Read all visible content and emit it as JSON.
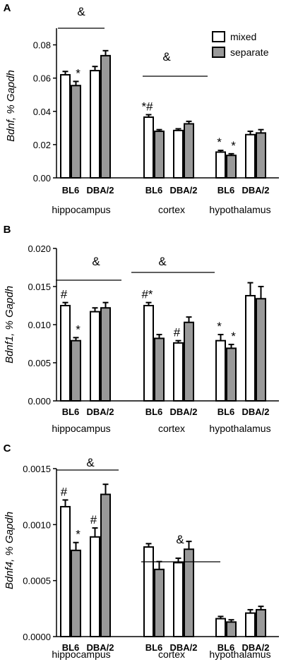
{
  "legend": {
    "series": [
      "mixed",
      "separate"
    ],
    "position": "top-right of panel A"
  },
  "colors": {
    "mixed": "#ffffff",
    "separate": "#999999",
    "stroke": "#000000"
  },
  "chart_data": [
    {
      "panel": "A",
      "type": "bar",
      "ylabel_gene": "Bdnf",
      "ylabel_rest": ", % Gapdh",
      "ylim": [
        0,
        0.09
      ],
      "yticks": [
        "0.00",
        "0.02",
        "0.04",
        "0.06",
        "0.08"
      ],
      "ytick_values": [
        0,
        0.02,
        0.04,
        0.06,
        0.08
      ],
      "regions": [
        "hippocampus",
        "cortex",
        "hypothalamus"
      ],
      "strains": [
        "BL6",
        "DBA/2"
      ],
      "groups": [
        {
          "region": "hippocampus",
          "strain": "BL6",
          "mixed": 0.062,
          "mixed_err": 0.002,
          "separate": 0.0555,
          "separate_err": 0.0025,
          "mixed_mark": "",
          "separate_mark": "*"
        },
        {
          "region": "hippocampus",
          "strain": "DBA/2",
          "mixed": 0.0645,
          "mixed_err": 0.0025,
          "separate": 0.0735,
          "separate_err": 0.003,
          "mixed_mark": "",
          "separate_mark": ""
        },
        {
          "region": "cortex",
          "strain": "BL6",
          "mixed": 0.0365,
          "mixed_err": 0.0015,
          "separate": 0.028,
          "separate_err": 0.001,
          "mixed_mark": "*#",
          "separate_mark": ""
        },
        {
          "region": "cortex",
          "strain": "DBA/2",
          "mixed": 0.0285,
          "mixed_err": 0.001,
          "separate": 0.0325,
          "separate_err": 0.0015,
          "mixed_mark": "",
          "separate_mark": ""
        },
        {
          "region": "hypothalamus",
          "strain": "BL6",
          "mixed": 0.0155,
          "mixed_err": 0.001,
          "separate": 0.0135,
          "separate_err": 0.001,
          "mixed_mark": "*",
          "separate_mark": "*"
        },
        {
          "region": "hypothalamus",
          "strain": "DBA/2",
          "mixed": 0.026,
          "mixed_err": 0.002,
          "separate": 0.027,
          "separate_err": 0.002,
          "mixed_mark": "",
          "separate_mark": ""
        }
      ],
      "brackets": [
        {
          "label": "&",
          "region": "hippocampus"
        },
        {
          "label": "&",
          "region": "cortex"
        }
      ]
    },
    {
      "panel": "B",
      "type": "bar",
      "ylabel_gene": "Bdnf1",
      "ylabel_rest": ", % Gapdh",
      "ylim": [
        0,
        0.02
      ],
      "yticks": [
        "0.000",
        "0.005",
        "0.010",
        "0.015",
        "0.020"
      ],
      "ytick_values": [
        0,
        0.005,
        0.01,
        0.015,
        0.02
      ],
      "regions": [
        "hippocampus",
        "cortex",
        "hypothalamus"
      ],
      "strains": [
        "BL6",
        "DBA/2"
      ],
      "groups": [
        {
          "region": "hippocampus",
          "strain": "BL6",
          "mixed": 0.0125,
          "mixed_err": 0.0004,
          "separate": 0.0079,
          "separate_err": 0.0004,
          "mixed_mark": "#",
          "separate_mark": "*"
        },
        {
          "region": "hippocampus",
          "strain": "DBA/2",
          "mixed": 0.0117,
          "mixed_err": 0.0005,
          "separate": 0.0122,
          "separate_err": 0.0007,
          "mixed_mark": "",
          "separate_mark": ""
        },
        {
          "region": "cortex",
          "strain": "BL6",
          "mixed": 0.0125,
          "mixed_err": 0.0004,
          "separate": 0.0082,
          "separate_err": 0.0005,
          "mixed_mark": "#*",
          "separate_mark": ""
        },
        {
          "region": "cortex",
          "strain": "DBA/2",
          "mixed": 0.0076,
          "mixed_err": 0.0003,
          "separate": 0.0103,
          "separate_err": 0.0007,
          "mixed_mark": "#",
          "separate_mark": ""
        },
        {
          "region": "hypothalamus",
          "strain": "BL6",
          "mixed": 0.0079,
          "mixed_err": 0.0008,
          "separate": 0.0069,
          "separate_err": 0.0005,
          "mixed_mark": "*",
          "separate_mark": "*"
        },
        {
          "region": "hypothalamus",
          "strain": "DBA/2",
          "mixed": 0.0138,
          "mixed_err": 0.0017,
          "separate": 0.0134,
          "separate_err": 0.0016,
          "mixed_mark": "",
          "separate_mark": ""
        }
      ],
      "brackets": [
        {
          "label": "&",
          "region": "hippocampus"
        },
        {
          "label": "&",
          "region": "cortex"
        }
      ]
    },
    {
      "panel": "C",
      "type": "bar",
      "ylabel_gene": "Bdnf4",
      "ylabel_rest": ", % Gapdh",
      "ylim": [
        0,
        0.0015
      ],
      "yticks": [
        "0.0000",
        "0.0005",
        "0.0010",
        "0.0015"
      ],
      "ytick_values": [
        0,
        0.0005,
        0.001,
        0.0015
      ],
      "regions": [
        "hippocampus",
        "cortex",
        "hypothalamus"
      ],
      "strains": [
        "BL6",
        "DBA/2"
      ],
      "groups": [
        {
          "region": "hippocampus",
          "strain": "BL6",
          "mixed": 0.00116,
          "mixed_err": 6e-05,
          "separate": 0.00077,
          "separate_err": 7e-05,
          "mixed_mark": "#",
          "separate_mark": "*"
        },
        {
          "region": "hippocampus",
          "strain": "DBA/2",
          "mixed": 0.00089,
          "mixed_err": 8e-05,
          "separate": 0.00127,
          "separate_err": 9e-05,
          "mixed_mark": "#",
          "separate_mark": ""
        },
        {
          "region": "cortex",
          "strain": "BL6",
          "mixed": 0.0008,
          "mixed_err": 3e-05,
          "separate": 0.0006,
          "separate_err": 7e-05,
          "mixed_mark": "",
          "separate_mark": ""
        },
        {
          "region": "cortex",
          "strain": "DBA/2",
          "mixed": 0.00066,
          "mixed_err": 4e-05,
          "separate": 0.00078,
          "separate_err": 7e-05,
          "mixed_mark": "",
          "separate_mark": ""
        },
        {
          "region": "hypothalamus",
          "strain": "BL6",
          "mixed": 0.00016,
          "mixed_err": 2e-05,
          "separate": 0.00013,
          "separate_err": 2e-05,
          "mixed_mark": "",
          "separate_mark": ""
        },
        {
          "region": "hypothalamus",
          "strain": "DBA/2",
          "mixed": 0.00021,
          "mixed_err": 3e-05,
          "separate": 0.00024,
          "separate_err": 3e-05,
          "mixed_mark": "",
          "separate_mark": ""
        }
      ],
      "brackets": [
        {
          "label": "&",
          "region": "hippocampus"
        },
        {
          "label": "&",
          "region": "cortex"
        }
      ]
    }
  ]
}
